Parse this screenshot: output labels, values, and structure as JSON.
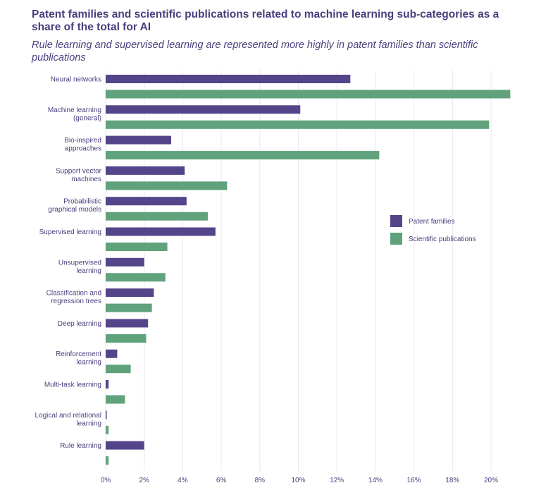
{
  "header": {
    "title": "Patent families and scientific publications related to machine learning sub-categories as a share of the total for AI",
    "subtitle": "Rule learning and supervised learning are represented more highly in patent families than scientific publications"
  },
  "colors": {
    "patent": "#54458a",
    "publication": "#5fa27b",
    "grid": "#e8e8ee",
    "text": "#4b3d7d"
  },
  "chart_data": {
    "type": "bar",
    "orientation": "horizontal",
    "title": "Patent families and scientific publications related to machine learning sub-categories as a share of the total for AI",
    "subtitle": "Rule learning and supervised learning are represented more highly in patent families than scientific publications",
    "xlabel": "",
    "ylabel": "",
    "xlim": [
      0,
      21
    ],
    "grid": true,
    "legend_position": "right",
    "x_ticks": [
      "0%",
      "2%",
      "4%",
      "6%",
      "8%",
      "10%",
      "12%",
      "14%",
      "16%",
      "18%",
      "20%"
    ],
    "x_tick_values": [
      0,
      2,
      4,
      6,
      8,
      10,
      12,
      14,
      16,
      18,
      20
    ],
    "categories": [
      [
        "Neural networks"
      ],
      [
        "Machine learning",
        "(general)"
      ],
      [
        "Bio-inspired",
        "approaches"
      ],
      [
        "Support vector",
        "machines"
      ],
      [
        "Probabilistic",
        "graphical models"
      ],
      [
        "Supervised learning"
      ],
      [
        "Unsupervised",
        "learning"
      ],
      [
        "Classification and",
        "regression trees"
      ],
      [
        "Deep learning"
      ],
      [
        "Reinforcement",
        "learning"
      ],
      [
        "Multi-task learning"
      ],
      [
        "Logical and relational",
        "learning"
      ],
      [
        "Rule learning"
      ]
    ],
    "series": [
      {
        "name": "Patent families",
        "values": [
          12.7,
          10.1,
          3.4,
          4.1,
          4.2,
          5.7,
          2.0,
          2.5,
          2.2,
          0.6,
          0.15,
          0.05,
          2.0
        ]
      },
      {
        "name": "Scientific publications",
        "values": [
          21.0,
          19.9,
          14.2,
          6.3,
          5.3,
          3.2,
          3.1,
          2.4,
          2.1,
          1.3,
          1.0,
          0.15,
          0.15
        ]
      }
    ]
  }
}
